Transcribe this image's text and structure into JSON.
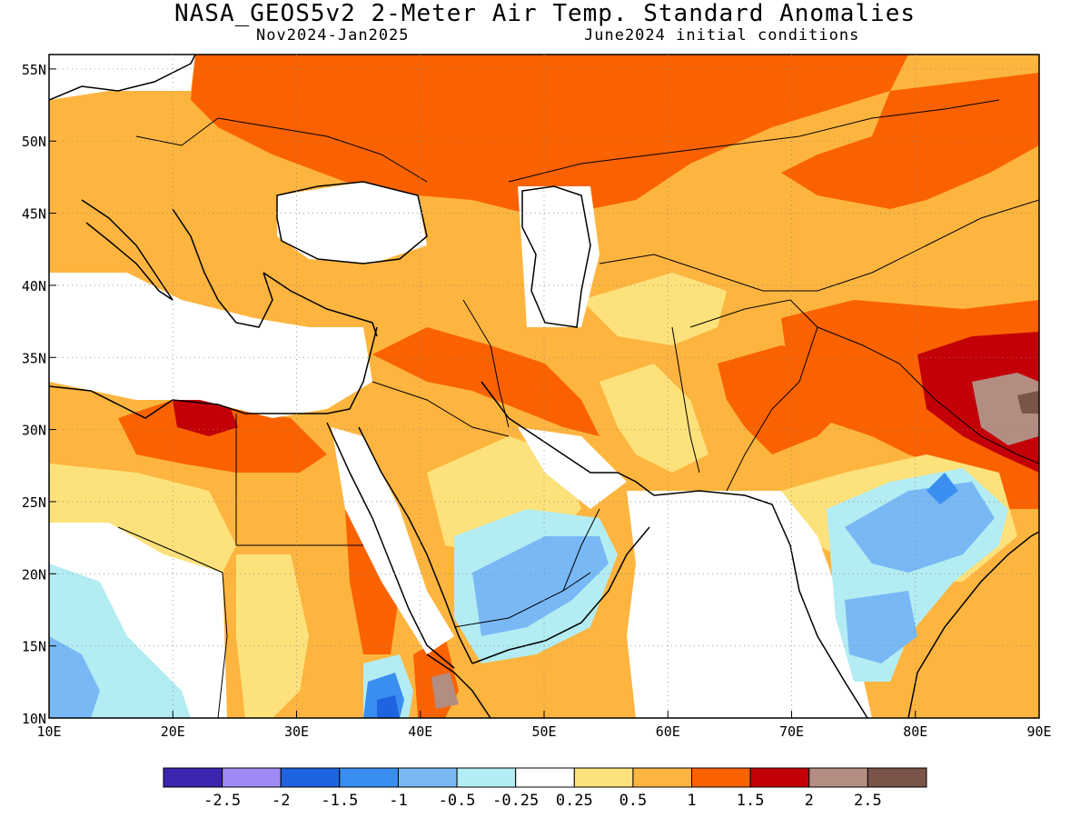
{
  "title": "NASA_GEOS5v2 2-Meter Air Temp. Standard Anomalies",
  "subtitle_left": "Nov2024-Jan2025",
  "subtitle_right": "June2024 initial conditions",
  "map": {
    "lon_range": [
      10,
      90
    ],
    "lat_range": [
      10,
      56
    ],
    "x_ticks": [
      "10E",
      "20E",
      "30E",
      "40E",
      "50E",
      "60E",
      "70E",
      "80E",
      "90E"
    ],
    "y_ticks": [
      "10N",
      "15N",
      "20N",
      "25N",
      "30N",
      "35N",
      "40N",
      "45N",
      "50N",
      "55N"
    ],
    "gridlines": "dotted"
  },
  "colorbar": {
    "colors": [
      "#3d25b0",
      "#9f8af5",
      "#1f63e0",
      "#3a8ef0",
      "#78b8f5",
      "#b3ecf2",
      "#ffffff",
      "#fde27c",
      "#fdb53f",
      "#fa6200",
      "#c30008",
      "#b38c82",
      "#7a5448"
    ],
    "labels": [
      "-2.5",
      "-2",
      "-1.5",
      "-1",
      "-0.5",
      "-0.25",
      "0.25",
      "0.5",
      "1",
      "1.5",
      "2",
      "2.5"
    ]
  }
}
